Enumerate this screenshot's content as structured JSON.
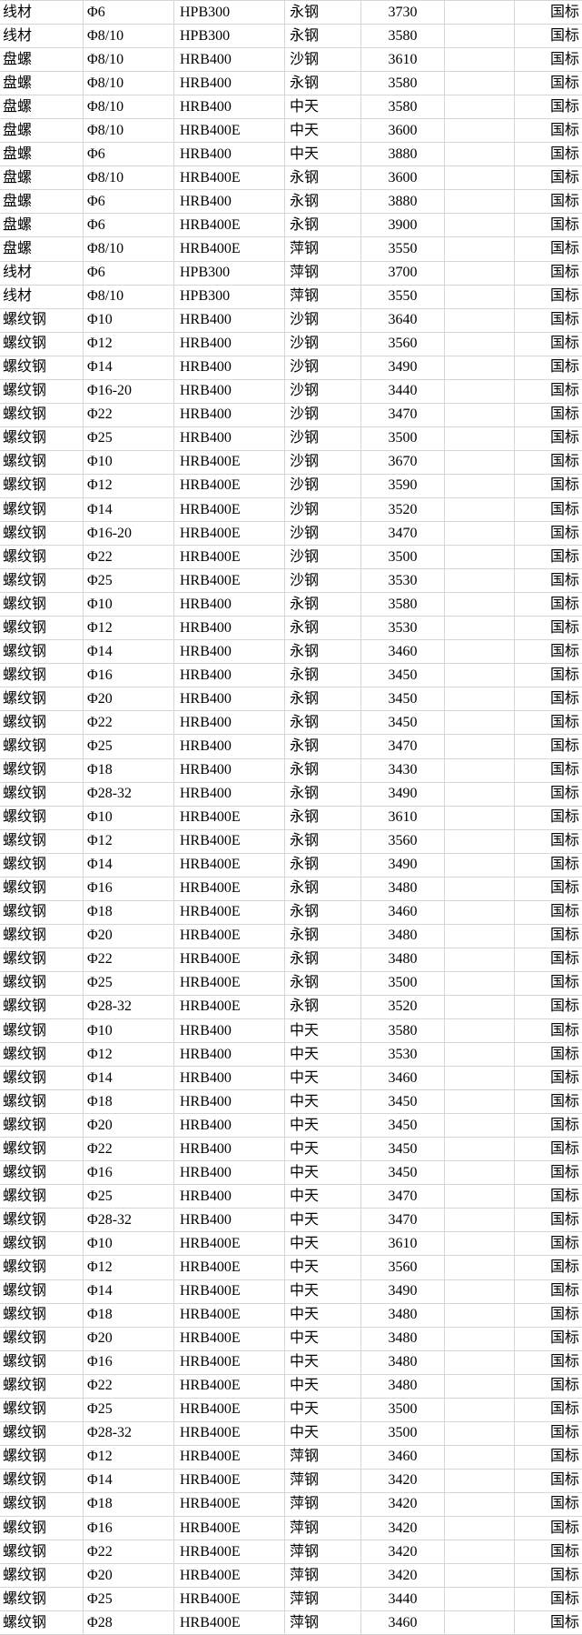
{
  "colors": {
    "background": "#ffffff",
    "gridline": "#d5d5d5",
    "text": "#000000"
  },
  "table": {
    "rows": [
      [
        "线材",
        "Φ6",
        "HPB300",
        "永钢",
        "3730",
        "",
        "国标"
      ],
      [
        "线材",
        "Φ8/10",
        "HPB300",
        "永钢",
        "3580",
        "",
        "国标"
      ],
      [
        "盘螺",
        "Φ8/10",
        "HRB400",
        "沙钢",
        "3610",
        "",
        "国标"
      ],
      [
        "盘螺",
        "Φ8/10",
        "HRB400",
        "永钢",
        "3580",
        "",
        "国标"
      ],
      [
        "盘螺",
        "Φ8/10",
        "HRB400",
        "中天",
        "3580",
        "",
        "国标"
      ],
      [
        "盘螺",
        "Φ8/10",
        "HRB400E",
        "中天",
        "3600",
        "",
        "国标"
      ],
      [
        "盘螺",
        "Φ6",
        "HRB400",
        "中天",
        "3880",
        "",
        "国标"
      ],
      [
        "盘螺",
        "Φ8/10",
        "HRB400E",
        "永钢",
        "3600",
        "",
        "国标"
      ],
      [
        "盘螺",
        "Φ6",
        "HRB400",
        "永钢",
        "3880",
        "",
        "国标"
      ],
      [
        "盘螺",
        "Φ6",
        "HRB400E",
        "永钢",
        "3900",
        "",
        "国标"
      ],
      [
        "盘螺",
        "Φ8/10",
        "HRB400E",
        "萍钢",
        "3550",
        "",
        "国标"
      ],
      [
        "线材",
        "Φ6",
        "HPB300",
        "萍钢",
        "3700",
        "",
        "国标"
      ],
      [
        "线材",
        "Φ8/10",
        "HPB300",
        "萍钢",
        "3550",
        "",
        "国标"
      ],
      [
        "螺纹钢",
        "Φ10",
        "HRB400",
        "沙钢",
        "3640",
        "",
        "国标"
      ],
      [
        "螺纹钢",
        "Φ12",
        "HRB400",
        "沙钢",
        "3560",
        "",
        "国标"
      ],
      [
        "螺纹钢",
        "Φ14",
        "HRB400",
        "沙钢",
        "3490",
        "",
        "国标"
      ],
      [
        "螺纹钢",
        "Φ16-20",
        "HRB400",
        "沙钢",
        "3440",
        "",
        "国标"
      ],
      [
        "螺纹钢",
        "Φ22",
        "HRB400",
        "沙钢",
        "3470",
        "",
        "国标"
      ],
      [
        "螺纹钢",
        "Φ25",
        "HRB400",
        "沙钢",
        "3500",
        "",
        "国标"
      ],
      [
        "螺纹钢",
        "Φ10",
        "HRB400E",
        "沙钢",
        "3670",
        "",
        "国标"
      ],
      [
        "螺纹钢",
        "Φ12",
        "HRB400E",
        "沙钢",
        "3590",
        "",
        "国标"
      ],
      [
        "螺纹钢",
        "Φ14",
        "HRB400E",
        "沙钢",
        "3520",
        "",
        "国标"
      ],
      [
        "螺纹钢",
        "Φ16-20",
        "HRB400E",
        "沙钢",
        "3470",
        "",
        "国标"
      ],
      [
        "螺纹钢",
        "Φ22",
        "HRB400E",
        "沙钢",
        "3500",
        "",
        "国标"
      ],
      [
        "螺纹钢",
        "Φ25",
        "HRB400E",
        "沙钢",
        "3530",
        "",
        "国标"
      ],
      [
        "螺纹钢",
        "Φ10",
        "HRB400",
        "永钢",
        "3580",
        "",
        "国标"
      ],
      [
        "螺纹钢",
        "Φ12",
        "HRB400",
        "永钢",
        "3530",
        "",
        "国标"
      ],
      [
        "螺纹钢",
        "Φ14",
        "HRB400",
        "永钢",
        "3460",
        "",
        "国标"
      ],
      [
        "螺纹钢",
        "Φ16",
        "HRB400",
        "永钢",
        "3450",
        "",
        "国标"
      ],
      [
        "螺纹钢",
        "Φ20",
        "HRB400",
        "永钢",
        "3450",
        "",
        "国标"
      ],
      [
        "螺纹钢",
        "Φ22",
        "HRB400",
        "永钢",
        "3450",
        "",
        "国标"
      ],
      [
        "螺纹钢",
        "Φ25",
        "HRB400",
        "永钢",
        "3470",
        "",
        "国标"
      ],
      [
        "螺纹钢",
        "Φ18",
        "HRB400",
        "永钢",
        "3430",
        "",
        "国标"
      ],
      [
        "螺纹钢",
        "Φ28-32",
        "HRB400",
        "永钢",
        "3490",
        "",
        "国标"
      ],
      [
        "螺纹钢",
        "Φ10",
        "HRB400E",
        "永钢",
        "3610",
        "",
        "国标"
      ],
      [
        "螺纹钢",
        "Φ12",
        "HRB400E",
        "永钢",
        "3560",
        "",
        "国标"
      ],
      [
        "螺纹钢",
        "Φ14",
        "HRB400E",
        "永钢",
        "3490",
        "",
        "国标"
      ],
      [
        "螺纹钢",
        "Φ16",
        "HRB400E",
        "永钢",
        "3480",
        "",
        "国标"
      ],
      [
        "螺纹钢",
        "Φ18",
        "HRB400E",
        "永钢",
        "3460",
        "",
        "国标"
      ],
      [
        "螺纹钢",
        "Φ20",
        "HRB400E",
        "永钢",
        "3480",
        "",
        "国标"
      ],
      [
        "螺纹钢",
        "Φ22",
        "HRB400E",
        "永钢",
        "3480",
        "",
        "国标"
      ],
      [
        "螺纹钢",
        "Φ25",
        "HRB400E",
        "永钢",
        "3500",
        "",
        "国标"
      ],
      [
        "螺纹钢",
        "Φ28-32",
        "HRB400E",
        "永钢",
        "3520",
        "",
        "国标"
      ],
      [
        "螺纹钢",
        "Φ10",
        "HRB400",
        "中天",
        "3580",
        "",
        "国标"
      ],
      [
        "螺纹钢",
        "Φ12",
        "HRB400",
        "中天",
        "3530",
        "",
        "国标"
      ],
      [
        "螺纹钢",
        "Φ14",
        "HRB400",
        "中天",
        "3460",
        "",
        "国标"
      ],
      [
        "螺纹钢",
        "Φ18",
        "HRB400",
        "中天",
        "3450",
        "",
        "国标"
      ],
      [
        "螺纹钢",
        "Φ20",
        "HRB400",
        "中天",
        "3450",
        "",
        "国标"
      ],
      [
        "螺纹钢",
        "Φ22",
        "HRB400",
        "中天",
        "3450",
        "",
        "国标"
      ],
      [
        "螺纹钢",
        "Φ16",
        "HRB400",
        "中天",
        "3450",
        "",
        "国标"
      ],
      [
        "螺纹钢",
        "Φ25",
        "HRB400",
        "中天",
        "3470",
        "",
        "国标"
      ],
      [
        "螺纹钢",
        "Φ28-32",
        "HRB400",
        "中天",
        "3470",
        "",
        "国标"
      ],
      [
        "螺纹钢",
        "Φ10",
        "HRB400E",
        "中天",
        "3610",
        "",
        "国标"
      ],
      [
        "螺纹钢",
        "Φ12",
        "HRB400E",
        "中天",
        "3560",
        "",
        "国标"
      ],
      [
        "螺纹钢",
        "Φ14",
        "HRB400E",
        "中天",
        "3490",
        "",
        "国标"
      ],
      [
        "螺纹钢",
        "Φ18",
        "HRB400E",
        "中天",
        "3480",
        "",
        "国标"
      ],
      [
        "螺纹钢",
        "Φ20",
        "HRB400E",
        "中天",
        "3480",
        "",
        "国标"
      ],
      [
        "螺纹钢",
        "Φ16",
        "HRB400E",
        "中天",
        "3480",
        "",
        "国标"
      ],
      [
        "螺纹钢",
        "Φ22",
        "HRB400E",
        "中天",
        "3480",
        "",
        "国标"
      ],
      [
        "螺纹钢",
        "Φ25",
        "HRB400E",
        "中天",
        "3500",
        "",
        "国标"
      ],
      [
        "螺纹钢",
        "Φ28-32",
        "HRB400E",
        "中天",
        "3500",
        "",
        "国标"
      ],
      [
        "螺纹钢",
        "Φ12",
        "HRB400E",
        "萍钢",
        "3460",
        "",
        "国标"
      ],
      [
        "螺纹钢",
        "Φ14",
        "HRB400E",
        "萍钢",
        "3420",
        "",
        "国标"
      ],
      [
        "螺纹钢",
        "Φ18",
        "HRB400E",
        "萍钢",
        "3420",
        "",
        "国标"
      ],
      [
        "螺纹钢",
        "Φ16",
        "HRB400E",
        "萍钢",
        "3420",
        "",
        "国标"
      ],
      [
        "螺纹钢",
        "Φ22",
        "HRB400E",
        "萍钢",
        "3420",
        "",
        "国标"
      ],
      [
        "螺纹钢",
        "Φ20",
        "HRB400E",
        "萍钢",
        "3420",
        "",
        "国标"
      ],
      [
        "螺纹钢",
        "Φ25",
        "HRB400E",
        "萍钢",
        "3440",
        "",
        "国标"
      ],
      [
        "螺纹钢",
        "Φ28",
        "HRB400E",
        "萍钢",
        "3460",
        "",
        "国标"
      ]
    ]
  }
}
